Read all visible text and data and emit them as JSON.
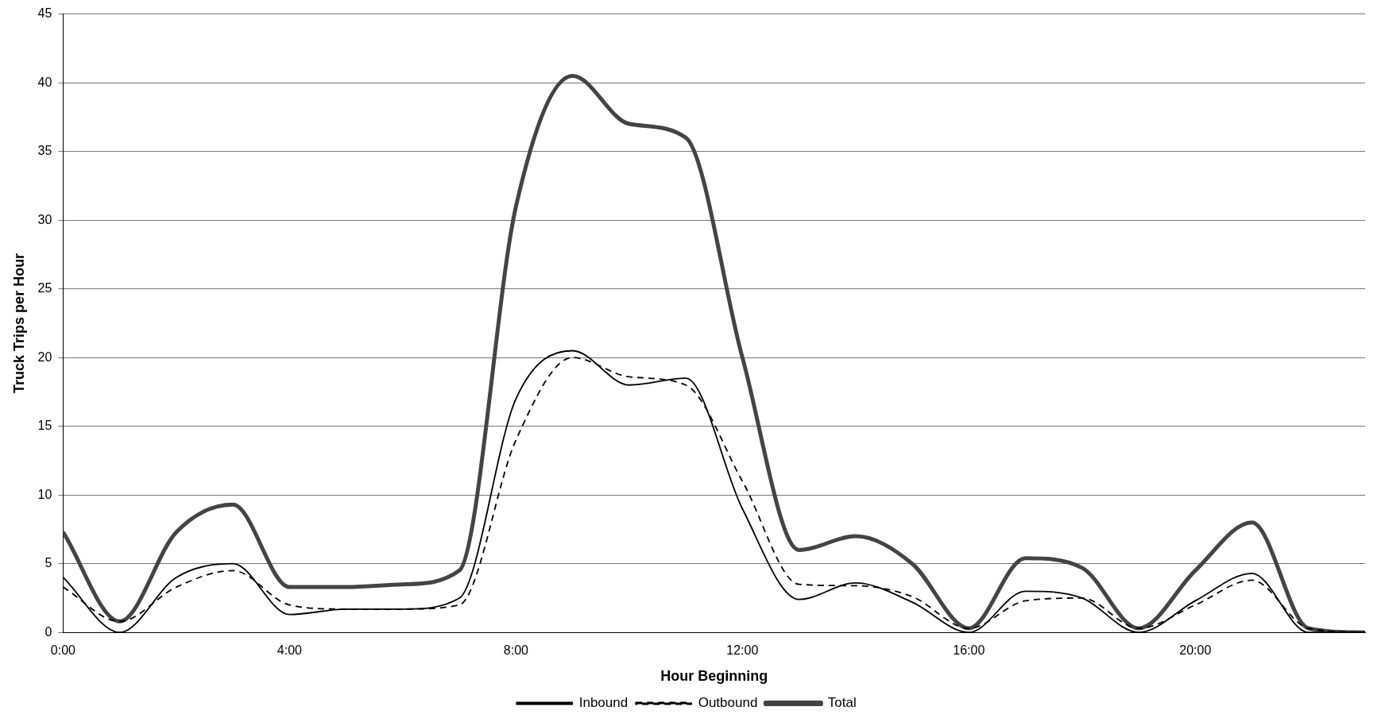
{
  "chart_data": {
    "type": "line",
    "xlabel": "Hour Beginning",
    "ylabel": "Truck Trips per Hour",
    "x": [
      0,
      1,
      2,
      3,
      4,
      5,
      6,
      7,
      8,
      9,
      10,
      11,
      12,
      13,
      14,
      15,
      16,
      17,
      18,
      19,
      20,
      21,
      22,
      23
    ],
    "series": [
      {
        "name": "Inbound",
        "color": "#000000",
        "line_style": "solid",
        "values": [
          4,
          0,
          4,
          5,
          1.3,
          1.7,
          1.7,
          2.5,
          17,
          20.5,
          18,
          18.5,
          9,
          2.4,
          3.6,
          2.2,
          0,
          3,
          2.5,
          0,
          2.3,
          4.3,
          0,
          0
        ]
      },
      {
        "name": "Outbound",
        "color": "#000000",
        "line_style": "dashed",
        "values": [
          3.3,
          0.8,
          3.3,
          4.5,
          2,
          1.7,
          1.7,
          2,
          14,
          20,
          18.6,
          18,
          11,
          3.5,
          3.4,
          2.6,
          0.3,
          2.3,
          2.5,
          0.3,
          2,
          3.8,
          0.3,
          0
        ]
      },
      {
        "name": "Total",
        "color": "#444444",
        "line_style": "solid",
        "values": [
          7.3,
          0.8,
          7.3,
          9.3,
          3.3,
          3.3,
          3.5,
          4.5,
          31,
          40.5,
          37,
          36,
          20,
          6,
          7,
          5,
          0.3,
          5.4,
          4.7,
          0.3,
          4.5,
          8,
          0.3,
          0
        ]
      }
    ],
    "xlim": [
      0,
      23
    ],
    "xticks": [
      {
        "value": 0,
        "label": "0:00"
      },
      {
        "value": 4,
        "label": "4:00"
      },
      {
        "value": 8,
        "label": "8:00"
      },
      {
        "value": 12,
        "label": "12:00"
      },
      {
        "value": 16,
        "label": "16:00"
      },
      {
        "value": 20,
        "label": "20:00"
      }
    ],
    "ylim": [
      0,
      45
    ],
    "yticks": [
      0,
      5,
      10,
      15,
      20,
      25,
      30,
      35,
      40,
      45
    ],
    "grid": "y",
    "legend": "bottom",
    "marker": "none"
  }
}
